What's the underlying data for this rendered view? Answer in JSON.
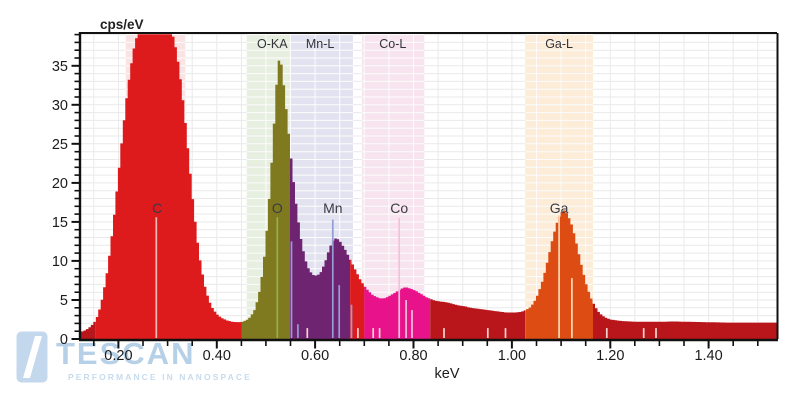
{
  "watermark": {
    "brand": "TESCAN",
    "tagline": "PERFORMANCE IN NANOSPACE",
    "color": "#b6d0e7"
  },
  "chart_data": {
    "type": "area",
    "kind": "EDS X-ray spectrum",
    "ylabel": "cps/eV",
    "xlabel": "keV",
    "x_range": [
      0.124,
      1.539
    ],
    "y_range": [
      0,
      39.2
    ],
    "grid": {
      "x_step": 0.05,
      "y_step": 1,
      "color": "#e9e9e9",
      "band_grid_color": "rgba(255,255,255,0.85)"
    },
    "x_major_ticks": [
      {
        "v": 0.2,
        "label": "0.20"
      },
      {
        "v": 0.4,
        "label": "0.40"
      },
      {
        "v": 0.6,
        "label": "0.60"
      },
      {
        "v": 0.8,
        "label": "0.80"
      },
      {
        "v": 1.0,
        "label": "1.00"
      },
      {
        "v": 1.2,
        "label": "1.20"
      },
      {
        "v": 1.4,
        "label": "1.40"
      }
    ],
    "x_minor_start": 0.15,
    "x_minor_step": 0.05,
    "y_major_ticks": [
      {
        "v": 0,
        "label": "0"
      },
      {
        "v": 5,
        "label": "5"
      },
      {
        "v": 10,
        "label": "10"
      },
      {
        "v": 15,
        "label": "15"
      },
      {
        "v": 20,
        "label": "20"
      },
      {
        "v": 25,
        "label": "25"
      },
      {
        "v": 30,
        "label": "30"
      },
      {
        "v": 35,
        "label": "35"
      }
    ],
    "y_minor_step": 1,
    "bands": [
      {
        "label": "",
        "from": 0.215,
        "to": 0.336,
        "color": "#f9e3e3",
        "label_x": 0.275
      },
      {
        "label": "O-KA",
        "from": 0.461,
        "to": 0.551,
        "color": "#e7efe0",
        "label_x": 0.513
      },
      {
        "label": "Mn-L",
        "from": 0.551,
        "to": 0.677,
        "color": "#e3e2f1",
        "label_x": 0.61
      },
      {
        "label": "Co-L",
        "from": 0.695,
        "to": 0.822,
        "color": "#f8e4ef",
        "label_x": 0.758
      },
      {
        "label": "Ga-L",
        "from": 1.027,
        "to": 1.165,
        "color": "#fdecd8",
        "label_x": 1.096
      }
    ],
    "regions": [
      {
        "from": 0.124,
        "to": 0.154,
        "color": "#b9161b"
      },
      {
        "from": 0.154,
        "to": 0.451,
        "color": "#dd1a1c"
      },
      {
        "from": 0.451,
        "to": 0.549,
        "color": "#7f7a1f"
      },
      {
        "from": 0.549,
        "to": 0.671,
        "color": "#6e2471"
      },
      {
        "from": 0.671,
        "to": 0.7,
        "color": "#dd1a1c"
      },
      {
        "from": 0.7,
        "to": 0.834,
        "color": "#e8138b"
      },
      {
        "from": 0.834,
        "to": 1.027,
        "color": "#b9161b"
      },
      {
        "from": 1.027,
        "to": 1.165,
        "color": "#dd4c12"
      },
      {
        "from": 1.165,
        "to": 1.539,
        "color": "#b9161b"
      }
    ],
    "element_markers": [
      {
        "element": "C",
        "color": "#f2b9b3",
        "label_at": 0.279,
        "lines": [
          [
            0.277,
            15.6
          ]
        ]
      },
      {
        "element": "O",
        "color": "#9cab4c",
        "label_at": 0.523,
        "lines": [
          [
            0.523,
            15.6
          ]
        ]
      },
      {
        "element": "Mn",
        "color": "#949dd4",
        "label_at": 0.636,
        "lines": [
          [
            0.552,
            12.5
          ],
          [
            0.565,
            1.9
          ],
          [
            0.636,
            15.3
          ],
          [
            0.649,
            6.9
          ],
          [
            0.674,
            4.4
          ]
        ]
      },
      {
        "element": "Co",
        "color": "#f3c0da",
        "label_at": 0.771,
        "lines": [
          [
            0.771,
            15.5
          ],
          [
            0.785,
            5.0
          ],
          [
            0.797,
            3.7
          ]
        ]
      },
      {
        "element": "Ga",
        "color": "#ffd9b5",
        "label_at": 1.096,
        "lines": [
          [
            1.096,
            15.9
          ],
          [
            1.122,
            7.8
          ]
        ]
      }
    ],
    "small_ticks": {
      "color": "#f5d6ce",
      "height": 1.4,
      "energies": [
        0.584,
        0.687,
        0.718,
        0.731,
        0.862,
        0.951,
        0.987,
        1.193,
        1.268,
        1.293
      ]
    },
    "spectrum": [
      [
        0.124,
        0.9
      ],
      [
        0.132,
        1.1
      ],
      [
        0.14,
        1.4
      ],
      [
        0.148,
        1.9
      ],
      [
        0.154,
        2.4
      ],
      [
        0.16,
        3.4
      ],
      [
        0.168,
        5.4
      ],
      [
        0.176,
        8.2
      ],
      [
        0.184,
        11.8
      ],
      [
        0.192,
        16.2
      ],
      [
        0.2,
        21.0
      ],
      [
        0.208,
        26.0
      ],
      [
        0.216,
        30.6
      ],
      [
        0.224,
        34.4
      ],
      [
        0.232,
        37.4
      ],
      [
        0.24,
        39.4
      ],
      [
        0.248,
        41.0
      ],
      [
        0.26,
        43.0
      ],
      [
        0.275,
        43.8
      ],
      [
        0.29,
        42.4
      ],
      [
        0.3,
        40.8
      ],
      [
        0.308,
        39.5
      ],
      [
        0.314,
        38.2
      ],
      [
        0.32,
        36.2
      ],
      [
        0.328,
        32.6
      ],
      [
        0.336,
        28.0
      ],
      [
        0.344,
        22.8
      ],
      [
        0.352,
        17.6
      ],
      [
        0.36,
        13.0
      ],
      [
        0.368,
        9.4
      ],
      [
        0.376,
        6.8
      ],
      [
        0.384,
        5.0
      ],
      [
        0.392,
        3.9
      ],
      [
        0.4,
        3.2
      ],
      [
        0.41,
        2.7
      ],
      [
        0.42,
        2.4
      ],
      [
        0.432,
        2.2
      ],
      [
        0.444,
        2.15
      ],
      [
        0.452,
        2.2
      ],
      [
        0.46,
        2.4
      ],
      [
        0.468,
        2.8
      ],
      [
        0.476,
        3.6
      ],
      [
        0.484,
        5.2
      ],
      [
        0.49,
        7.2
      ],
      [
        0.496,
        10.2
      ],
      [
        0.502,
        14.2
      ],
      [
        0.508,
        19.2
      ],
      [
        0.514,
        25.0
      ],
      [
        0.519,
        30.2
      ],
      [
        0.523,
        34.0
      ],
      [
        0.527,
        35.9
      ],
      [
        0.531,
        35.4
      ],
      [
        0.535,
        33.4
      ],
      [
        0.54,
        30.4
      ],
      [
        0.546,
        26.6
      ],
      [
        0.552,
        22.8
      ],
      [
        0.558,
        19.2
      ],
      [
        0.564,
        16.0
      ],
      [
        0.572,
        12.6
      ],
      [
        0.58,
        10.2
      ],
      [
        0.588,
        8.8
      ],
      [
        0.596,
        8.2
      ],
      [
        0.604,
        8.1
      ],
      [
        0.612,
        8.6
      ],
      [
        0.62,
        9.8
      ],
      [
        0.628,
        11.4
      ],
      [
        0.634,
        12.4
      ],
      [
        0.64,
        12.9
      ],
      [
        0.646,
        12.8
      ],
      [
        0.652,
        12.4
      ],
      [
        0.66,
        11.6
      ],
      [
        0.668,
        10.6
      ],
      [
        0.676,
        9.6
      ],
      [
        0.684,
        8.6
      ],
      [
        0.692,
        7.6
      ],
      [
        0.7,
        6.8
      ],
      [
        0.708,
        6.2
      ],
      [
        0.716,
        5.7
      ],
      [
        0.724,
        5.4
      ],
      [
        0.732,
        5.2
      ],
      [
        0.74,
        5.2
      ],
      [
        0.748,
        5.4
      ],
      [
        0.756,
        5.7
      ],
      [
        0.764,
        6.0
      ],
      [
        0.772,
        6.3
      ],
      [
        0.78,
        6.6
      ],
      [
        0.788,
        6.6
      ],
      [
        0.796,
        6.4
      ],
      [
        0.804,
        6.2
      ],
      [
        0.812,
        5.9
      ],
      [
        0.82,
        5.6
      ],
      [
        0.828,
        5.3
      ],
      [
        0.836,
        5.1
      ],
      [
        0.844,
        4.9
      ],
      [
        0.856,
        4.8
      ],
      [
        0.868,
        4.7
      ],
      [
        0.88,
        4.5
      ],
      [
        0.892,
        4.3
      ],
      [
        0.904,
        4.2
      ],
      [
        0.916,
        4.0
      ],
      [
        0.928,
        3.9
      ],
      [
        0.94,
        3.8
      ],
      [
        0.952,
        3.7
      ],
      [
        0.964,
        3.6
      ],
      [
        0.976,
        3.5
      ],
      [
        0.988,
        3.4
      ],
      [
        1.0,
        3.4
      ],
      [
        1.01,
        3.4
      ],
      [
        1.02,
        3.5
      ],
      [
        1.028,
        3.7
      ],
      [
        1.036,
        4.0
      ],
      [
        1.044,
        4.6
      ],
      [
        1.052,
        5.6
      ],
      [
        1.06,
        7.0
      ],
      [
        1.068,
        8.8
      ],
      [
        1.076,
        11.0
      ],
      [
        1.084,
        13.2
      ],
      [
        1.092,
        15.0
      ],
      [
        1.1,
        16.2
      ],
      [
        1.106,
        16.5
      ],
      [
        1.112,
        16.1
      ],
      [
        1.12,
        15.0
      ],
      [
        1.128,
        13.2
      ],
      [
        1.136,
        11.0
      ],
      [
        1.144,
        8.8
      ],
      [
        1.152,
        6.9
      ],
      [
        1.16,
        5.4
      ],
      [
        1.168,
        4.3
      ],
      [
        1.176,
        3.5
      ],
      [
        1.184,
        3.0
      ],
      [
        1.192,
        2.7
      ],
      [
        1.2,
        2.5
      ],
      [
        1.212,
        2.4
      ],
      [
        1.224,
        2.3
      ],
      [
        1.24,
        2.25
      ],
      [
        1.26,
        2.2
      ],
      [
        1.28,
        2.2
      ],
      [
        1.3,
        2.2
      ],
      [
        1.33,
        2.25
      ],
      [
        1.36,
        2.2
      ],
      [
        1.4,
        2.15
      ],
      [
        1.44,
        2.1
      ],
      [
        1.48,
        2.1
      ],
      [
        1.52,
        2.1
      ],
      [
        1.539,
        2.1
      ]
    ]
  }
}
